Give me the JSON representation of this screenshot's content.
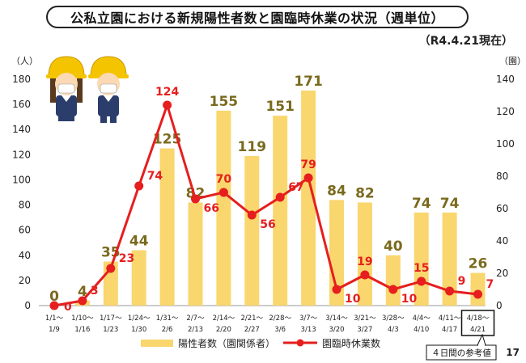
{
  "page": {
    "title": "公私立園における新規陽性者数と園臨時休業の状況（週単位）",
    "as_of": "（R4.4.21現在）",
    "page_number": "17",
    "note": "４日間の参考値"
  },
  "colors": {
    "bar": "#F9D66E",
    "line": "#E61E1E",
    "bar_label": "#7A6A1E",
    "line_label": "#E61E1E"
  },
  "chart_data": {
    "type": "bar",
    "xlabel": "",
    "ylabel_left": "（人）",
    "ylabel_right": "（園）",
    "ylim_left": [
      0,
      180
    ],
    "ylim_right": [
      0,
      140
    ],
    "yticks_left": [
      "0",
      "20",
      "40",
      "60",
      "80",
      "100",
      "120",
      "140",
      "160",
      "180"
    ],
    "yticks_right": [
      "0",
      "20",
      "40",
      "60",
      "80",
      "100",
      "120",
      "140"
    ],
    "categories": [
      [
        "1/1～",
        "1/9"
      ],
      [
        "1/10～",
        "1/16"
      ],
      [
        "1/17～",
        "1/23"
      ],
      [
        "1/24～",
        "1/30"
      ],
      [
        "1/31～",
        "2/6"
      ],
      [
        "2/7～",
        "2/13"
      ],
      [
        "2/14～",
        "2/20"
      ],
      [
        "2/21～",
        "2/27"
      ],
      [
        "2/28～",
        "3/6"
      ],
      [
        "3/7～",
        "3/13"
      ],
      [
        "3/14～",
        "3/20"
      ],
      [
        "3/21～",
        "3/27"
      ],
      [
        "3/28～",
        "4/3"
      ],
      [
        "4/4～",
        "4/10"
      ],
      [
        "4/11～",
        "4/17"
      ],
      [
        "4/18～",
        "4/21"
      ]
    ],
    "series": [
      {
        "name": "陽性者数（園関係者）",
        "type": "bar",
        "axis": "left",
        "values": [
          0,
          4,
          35,
          44,
          125,
          82,
          155,
          119,
          151,
          171,
          84,
          82,
          40,
          74,
          74,
          26
        ]
      },
      {
        "name": "園臨時休業数",
        "type": "line",
        "axis": "right",
        "values": [
          0,
          3,
          23,
          74,
          124,
          66,
          70,
          56,
          67,
          79,
          10,
          19,
          10,
          15,
          9,
          7
        ]
      }
    ],
    "grid": false,
    "legend": "bottom"
  }
}
